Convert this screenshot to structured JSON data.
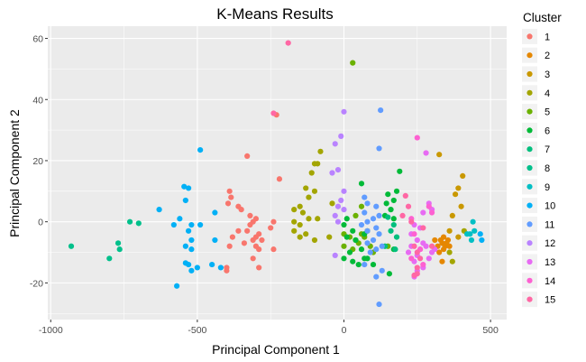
{
  "chart_data": {
    "type": "scatter",
    "title": "K-Means Results",
    "xlabel": "Principal Component 1",
    "ylabel": "Principal Component 2",
    "xlim": [
      -1010,
      555
    ],
    "ylim": [
      -32,
      64
    ],
    "xticks": [
      -1000,
      -500,
      0,
      500
    ],
    "xtick_labels": [
      "-1000",
      "-500",
      "0",
      "500"
    ],
    "yticks": [
      -20,
      0,
      20,
      40,
      60
    ],
    "ytick_labels": [
      "-20",
      "0",
      "20",
      "40",
      "60"
    ],
    "grid": true,
    "legend": {
      "title": "Cluster",
      "placement": "right"
    },
    "series": [
      {
        "name": "1",
        "color": "#F8766D",
        "points": [
          [
            -230,
            35
          ],
          [
            -330,
            21.5
          ],
          [
            -220,
            14
          ],
          [
            -390,
            10
          ],
          [
            -385,
            8
          ],
          [
            -395,
            6
          ],
          [
            -360,
            5
          ],
          [
            -350,
            4
          ],
          [
            -320,
            2
          ],
          [
            -300,
            1
          ],
          [
            -310,
            0
          ],
          [
            -320,
            -1
          ],
          [
            -330,
            -3
          ],
          [
            -290,
            -4
          ],
          [
            -300,
            -5
          ],
          [
            -280,
            -6
          ],
          [
            -310,
            -6
          ],
          [
            -340,
            -7
          ],
          [
            -300,
            -8
          ],
          [
            -290,
            -9
          ],
          [
            -240,
            -9
          ],
          [
            -380,
            -5
          ],
          [
            -250,
            -2
          ],
          [
            -390,
            -8
          ],
          [
            -310,
            -12
          ],
          [
            -400,
            -15
          ],
          [
            -400,
            -16
          ],
          [
            -290,
            -15
          ],
          [
            -360,
            -3
          ],
          [
            -240,
            0
          ]
        ]
      },
      {
        "name": "2",
        "color": "#E58700",
        "points": [
          [
            330,
            -6
          ],
          [
            335,
            -7
          ],
          [
            345,
            -8
          ],
          [
            350,
            -7
          ],
          [
            340,
            -9
          ],
          [
            320,
            -8
          ],
          [
            310,
            -6
          ],
          [
            325,
            -10
          ],
          [
            340,
            -5
          ],
          [
            355,
            -6
          ],
          [
            360,
            -8
          ],
          [
            335,
            -13
          ]
        ]
      },
      {
        "name": "3",
        "color": "#C99800",
        "points": [
          [
            325,
            22
          ],
          [
            405,
            15
          ],
          [
            390,
            11
          ],
          [
            380,
            9
          ],
          [
            400,
            5
          ],
          [
            370,
            2
          ],
          [
            390,
            -5
          ],
          [
            360,
            -3
          ]
        ]
      },
      {
        "name": "4",
        "color": "#A3A500",
        "points": [
          [
            -80,
            23
          ],
          [
            -90,
            19
          ],
          [
            -100,
            19
          ],
          [
            -110,
            16
          ],
          [
            -130,
            11
          ],
          [
            -100,
            10
          ],
          [
            -120,
            8
          ],
          [
            -150,
            5
          ],
          [
            -170,
            4
          ],
          [
            -140,
            3
          ],
          [
            -120,
            1
          ],
          [
            -90,
            1
          ],
          [
            -170,
            0
          ],
          [
            -150,
            -1
          ],
          [
            -170,
            -3
          ],
          [
            -130,
            -4
          ],
          [
            -150,
            -5
          ],
          [
            -100,
            -6
          ],
          [
            -50,
            -5
          ],
          [
            -40,
            6
          ],
          [
            410,
            -3
          ],
          [
            360,
            -10
          ],
          [
            370,
            -13
          ]
        ]
      },
      {
        "name": "5",
        "color": "#6BB100",
        "points": [
          [
            30,
            52
          ],
          [
            60,
            5
          ],
          [
            40,
            2
          ],
          [
            0,
            -4
          ],
          [
            20,
            -5
          ],
          [
            40,
            -6
          ],
          [
            60,
            -4
          ],
          [
            80,
            -3
          ],
          [
            70,
            -5
          ],
          [
            50,
            -7
          ],
          [
            90,
            -8
          ],
          [
            0,
            -8
          ],
          [
            30,
            -9
          ],
          [
            150,
            -8
          ],
          [
            100,
            -10
          ]
        ]
      },
      {
        "name": "6",
        "color": "#00BA38",
        "points": [
          [
            190,
            16.5
          ],
          [
            60,
            12.5
          ],
          [
            150,
            9
          ],
          [
            180,
            10
          ],
          [
            170,
            7
          ],
          [
            145,
            6
          ],
          [
            160,
            4
          ],
          [
            140,
            2
          ],
          [
            170,
            1
          ],
          [
            10,
            1
          ],
          [
            0,
            -1
          ],
          [
            30,
            -3
          ],
          [
            70,
            -4
          ],
          [
            10,
            -5
          ],
          [
            40,
            -6
          ],
          [
            60,
            -9
          ],
          [
            20,
            -10
          ],
          [
            70,
            -12
          ],
          [
            30,
            -13
          ],
          [
            50,
            -14
          ],
          [
            80,
            -12
          ],
          [
            100,
            -14
          ],
          [
            170,
            -9
          ],
          [
            155,
            -17
          ],
          [
            0,
            -12
          ]
        ]
      },
      {
        "name": "7",
        "color": "#00BF7D",
        "points": [
          [
            150,
            1.5
          ],
          [
            170,
            -1
          ],
          [
            160,
            -3
          ],
          [
            180,
            -5
          ],
          [
            140,
            -8
          ],
          [
            175,
            -9
          ]
        ]
      },
      {
        "name": "8",
        "color": "#00C08B",
        "points": [
          [
            -930,
            -8
          ],
          [
            -770,
            -7
          ],
          [
            -765,
            -9
          ],
          [
            -800,
            -12
          ],
          [
            -730,
            0
          ],
          [
            -700,
            -0.5
          ]
        ]
      },
      {
        "name": "9",
        "color": "#00BFC4",
        "points": [
          [
            440,
            0
          ],
          [
            430,
            -4
          ],
          [
            420,
            -4
          ],
          [
            445,
            -3
          ],
          [
            435,
            -6
          ]
        ]
      },
      {
        "name": "10",
        "color": "#00B0F6",
        "points": [
          [
            -490,
            23.5
          ],
          [
            -545,
            11.5
          ],
          [
            -530,
            11
          ],
          [
            -540,
            7
          ],
          [
            -630,
            4
          ],
          [
            -440,
            3
          ],
          [
            -560,
            1
          ],
          [
            -520,
            -1
          ],
          [
            -530,
            -3
          ],
          [
            -580,
            -1
          ],
          [
            -520,
            -6
          ],
          [
            -540,
            -8
          ],
          [
            -520,
            -9
          ],
          [
            -440,
            -6
          ],
          [
            -540,
            -13.5
          ],
          [
            -530,
            -14
          ],
          [
            -520,
            -16
          ],
          [
            -500,
            -15
          ],
          [
            -450,
            -14
          ],
          [
            -420,
            -15
          ],
          [
            -570,
            -21
          ],
          [
            -490,
            -1
          ],
          [
            465,
            -4
          ],
          [
            470,
            -6
          ]
        ]
      },
      {
        "name": "11",
        "color": "#619CFF",
        "points": [
          [
            125,
            36.5
          ],
          [
            120,
            24
          ],
          [
            70,
            8
          ],
          [
            80,
            6
          ],
          [
            110,
            5
          ],
          [
            70,
            3
          ],
          [
            120,
            2
          ],
          [
            100,
            1
          ],
          [
            80,
            0
          ],
          [
            110,
            -2
          ],
          [
            80,
            -3
          ],
          [
            60,
            -1
          ],
          [
            120,
            -4
          ],
          [
            100,
            -6
          ],
          [
            80,
            -7
          ],
          [
            130,
            -8
          ],
          [
            110,
            -9
          ],
          [
            90,
            -10
          ],
          [
            70,
            -14
          ],
          [
            130,
            -16
          ],
          [
            110,
            -18
          ],
          [
            120,
            -27
          ]
        ]
      },
      {
        "name": "12",
        "color": "#B983FF",
        "points": [
          [
            0,
            36
          ],
          [
            -10,
            28
          ],
          [
            -30,
            25.5
          ],
          [
            -20,
            17
          ],
          [
            -40,
            16
          ],
          [
            0,
            10
          ],
          [
            -10,
            7
          ],
          [
            -20,
            5
          ],
          [
            0,
            4
          ],
          [
            -30,
            2
          ],
          [
            -20,
            0
          ],
          [
            -30,
            -11
          ]
        ]
      },
      {
        "name": "13",
        "color": "#E76BF3",
        "points": [
          [
            280,
            22.5
          ],
          [
            290,
            6
          ],
          [
            300,
            4
          ],
          [
            270,
            3
          ],
          [
            240,
            -1
          ],
          [
            260,
            -2
          ],
          [
            230,
            -4
          ],
          [
            250,
            -6
          ],
          [
            270,
            -7
          ],
          [
            230,
            -8
          ],
          [
            260,
            -9
          ],
          [
            280,
            -8
          ],
          [
            250,
            -11
          ],
          [
            240,
            -13
          ],
          [
            270,
            -15
          ],
          [
            250,
            -16
          ],
          [
            240,
            -18
          ],
          [
            290,
            -12
          ],
          [
            300,
            -10
          ],
          [
            310,
            -9
          ],
          [
            220,
            -10
          ]
        ]
      },
      {
        "name": "14",
        "color": "#FD61D1",
        "points": [
          [
            250,
            27.5
          ],
          [
            290,
            5
          ],
          [
            300,
            3
          ],
          [
            230,
            1
          ],
          [
            240,
            -4
          ],
          [
            260,
            -9
          ],
          [
            230,
            -12
          ],
          [
            270,
            -14
          ]
        ]
      },
      {
        "name": "15",
        "color": "#FF67A4",
        "points": [
          [
            -190,
            58.5
          ],
          [
            -240,
            35.5
          ],
          [
            210,
            8.5
          ],
          [
            220,
            5
          ],
          [
            200,
            2
          ],
          [
            230,
            0
          ],
          [
            270,
            -2
          ],
          [
            240,
            -8
          ],
          [
            250,
            -10
          ],
          [
            260,
            -12
          ],
          [
            250,
            -15
          ],
          [
            250,
            -17
          ],
          [
            240,
            -17.5
          ],
          [
            300,
            -8
          ]
        ]
      }
    ]
  }
}
